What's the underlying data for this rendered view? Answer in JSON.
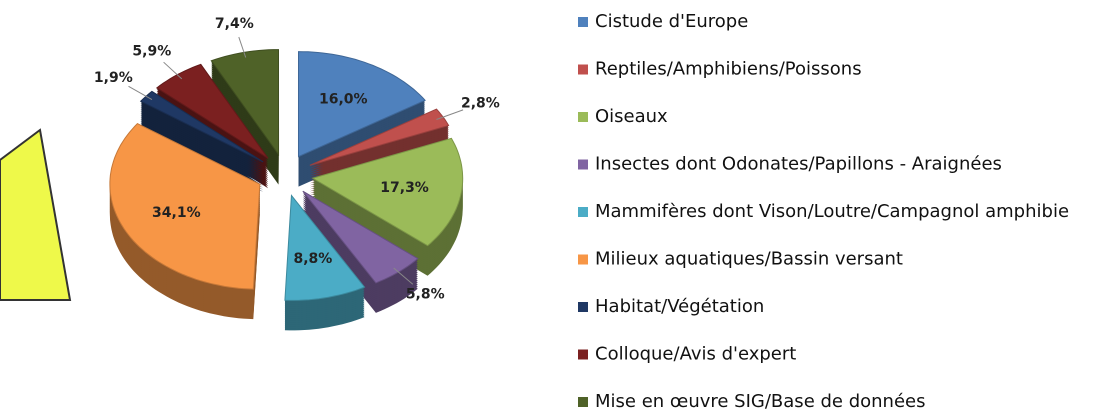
{
  "chart_data": {
    "type": "pie",
    "categories": [
      "Cistude d'Europe",
      "Reptiles/Amphibiens/Poissons",
      "Oiseaux",
      "Insectes dont Odonates/Papillons - Araignées",
      "Mammifères dont Vison/Loutre/Campagnol amphibie",
      "Milieux aquatiques/Bassin versant",
      "Habitat/Végétation",
      "Colloque/Avis d'expert",
      "Mise en œuvre SIG/Base de données"
    ],
    "values": [
      16.0,
      2.8,
      17.3,
      5.8,
      8.8,
      34.1,
      1.9,
      5.9,
      7.4
    ],
    "value_labels": [
      "16,0%",
      "2,8%",
      "17,3%",
      "5,8%",
      "8,8%",
      "34,1%",
      "1,9%",
      "5,9%",
      "7,4%"
    ],
    "colors": [
      "#4f81bd",
      "#c0504d",
      "#9bbb59",
      "#8064a2",
      "#4bacc6",
      "#f79646",
      "#1f3864",
      "#7b2020",
      "#4f6228"
    ],
    "legend": "right"
  }
}
